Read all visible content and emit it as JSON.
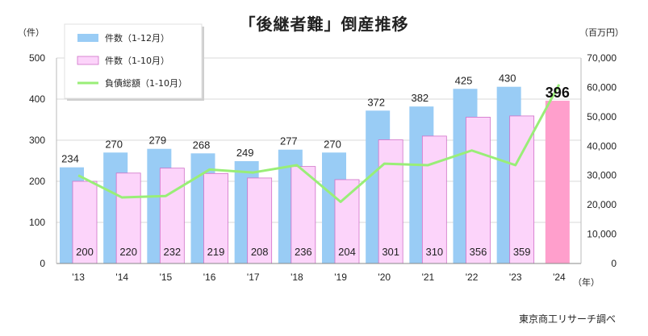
{
  "title": "「後継者難」倒産推移",
  "source": "東京商工リサーチ調べ",
  "chart_data": {
    "type": "bar",
    "categories": [
      "'13",
      "'14",
      "'15",
      "'16",
      "'17",
      "'18",
      "'19",
      "'20",
      "'21",
      "'22",
      "'23",
      "'24"
    ],
    "series": [
      {
        "name": "件数（1-12月）",
        "values": [
          234,
          270,
          279,
          268,
          249,
          277,
          270,
          372,
          382,
          425,
          430,
          null
        ],
        "color": "#99ccf5"
      },
      {
        "name": "件数（1-10月）",
        "values": [
          200,
          220,
          232,
          219,
          208,
          236,
          204,
          301,
          310,
          356,
          359,
          396
        ],
        "color": "#fcd4fa",
        "highlight_color": "#ff9fcc"
      },
      {
        "name": "負債総額（1-10月）",
        "values": [
          30000,
          22500,
          23000,
          32000,
          31000,
          33500,
          21000,
          34000,
          33500,
          38500,
          33500,
          61000
        ],
        "color": "#99ee77",
        "axis": "right"
      }
    ],
    "ylim": [
      0,
      500
    ],
    "yticks": [
      "0",
      "100",
      "200",
      "300",
      "400",
      "500"
    ],
    "y2lim": [
      0,
      70000
    ],
    "y2ticks": [
      "0",
      "10,000",
      "20,000",
      "30,000",
      "40,000",
      "50,000",
      "60,000",
      "70,000"
    ],
    "ylabel": "（件）",
    "y2label": "（百万円）",
    "xlabel": "（年）",
    "highlight_label": "396",
    "legend_position": "top-left",
    "grid": true
  }
}
